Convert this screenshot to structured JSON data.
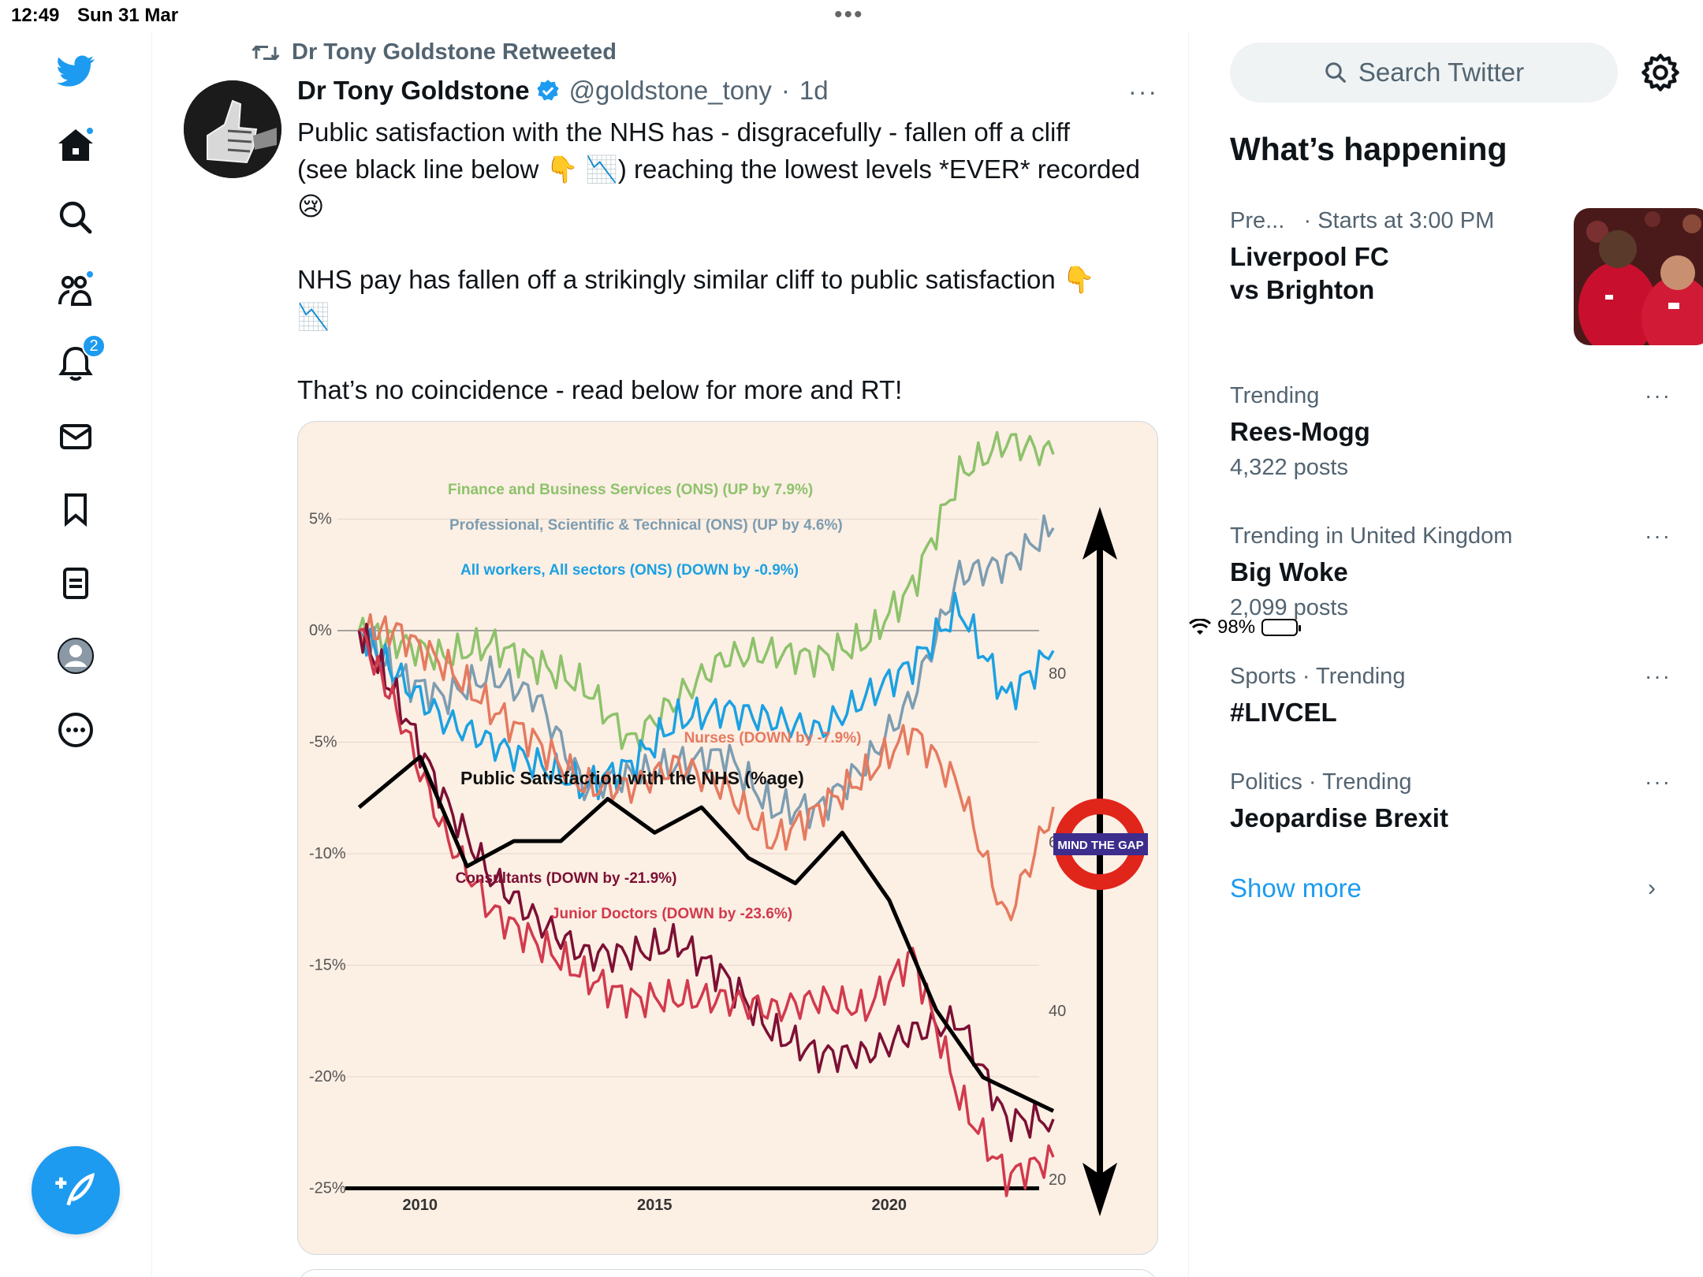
{
  "status_bar": {
    "time": "12:49",
    "date": "Sun 31 Mar",
    "battery": "98%",
    "battery_level": 0.98
  },
  "nav": {
    "icons": [
      "twitter-logo-icon",
      "home-icon",
      "search-icon",
      "communities-icon",
      "notifications-icon",
      "messages-icon",
      "bookmarks-icon",
      "lists-icon",
      "profile-icon",
      "more-icon"
    ],
    "notifications_badge": "2",
    "compose_icon": "feather-plus-icon"
  },
  "tweet": {
    "retweeted_by": "Dr Tony Goldstone Retweeted",
    "author_name": "Dr Tony Goldstone",
    "handle": "@goldstone_tony",
    "separator": "·",
    "time": "1d",
    "more": "···",
    "lines": {
      "l1": "Public satisfaction with the NHS has - disgracefully - fallen off a cliff",
      "l2": "(see black line below 👇 📉) reaching the lowest levels *EVER* recorded",
      "l3": "😢",
      "l4": "NHS pay has fallen off a strikingly similar  cliff to public satisfaction 👇",
      "l5": "📉",
      "l6": "That’s no coincidence - read below for more and RT!"
    }
  },
  "chart_data": {
    "type": "line",
    "title": "",
    "x": [
      2008.7,
      2009.5,
      2010.5,
      2011.5,
      2012.5,
      2013.5,
      2014.5,
      2015.5,
      2016.5,
      2017.5,
      2018.5,
      2019.5,
      2020.5,
      2021.5,
      2022.5,
      2023.5
    ],
    "xticks": [
      "2010",
      "2015",
      "2020"
    ],
    "left_axis": {
      "ticks": [
        "5%",
        "0%",
        "-5%",
        "-10%",
        "-15%",
        "-20%",
        "-25%"
      ],
      "range": [
        -25,
        10
      ]
    },
    "right_axis": {
      "ticks": [
        "80",
        "60",
        "40",
        "20"
      ],
      "range": [
        20,
        80
      ]
    },
    "series": [
      {
        "name": "Finance and Business Services (ONS) (UP by 7.9%)",
        "color": "#8dc26b",
        "axis": "left",
        "values": [
          0,
          -0.5,
          -1.2,
          -0.6,
          -1.5,
          -2.5,
          -5,
          -3,
          -1.2,
          -1,
          -1.2,
          -0.5,
          2,
          7,
          8.5,
          7.9
        ]
      },
      {
        "name": "Professional, Scientific & Technical (ONS) (UP by 4.6%)",
        "color": "#7d9db1",
        "axis": "left",
        "values": [
          0,
          -2,
          -3,
          -2,
          -3,
          -7,
          -6.5,
          -6,
          -5.5,
          -8,
          -8,
          -6,
          -3,
          2.5,
          3,
          4.6
        ]
      },
      {
        "name": "All workers, All sectors (ONS) (DOWN by -0.9%)",
        "color": "#1ba1e2",
        "axis": "left",
        "values": [
          0,
          -2,
          -4,
          -5,
          -6,
          -7,
          -6,
          -4,
          -3.5,
          -4,
          -4.5,
          -3,
          -1.5,
          1,
          -3,
          -0.9
        ]
      },
      {
        "name": "Nurses (DOWN by -7.9%)",
        "color": "#e57a5f",
        "axis": "left",
        "values": [
          0,
          0,
          -1.5,
          -3.5,
          -5,
          -7,
          -7,
          -6,
          -7,
          -9.5,
          -8,
          -6.5,
          -4.5,
          -7,
          -13,
          -7.9
        ]
      },
      {
        "name": "Consultants (DOWN by -21.9%)",
        "color": "#7c1034",
        "axis": "left",
        "values": [
          0,
          -3,
          -7.5,
          -11,
          -13,
          -14.5,
          -14.5,
          -14,
          -15.5,
          -18,
          -19,
          -19,
          -18,
          -17.5,
          -22,
          -21.9
        ]
      },
      {
        "name": "Junior Doctors (DOWN by -23.6%)",
        "color": "#d13a4d",
        "axis": "left",
        "values": [
          0,
          -3.5,
          -9,
          -12.5,
          -14,
          -15.5,
          -16.5,
          -16.5,
          -16.5,
          -17,
          -16.5,
          -17,
          -14.5,
          -21,
          -24.5,
          -23.6
        ]
      },
      {
        "name": "Public Satisfaction with the NHS (%age)",
        "color": "#000000",
        "axis": "right",
        "x": [
          2008.7,
          2010,
          2011,
          2012,
          2013,
          2014,
          2015,
          2016,
          2017,
          2018,
          2019,
          2020,
          2021,
          2022,
          2023.5
        ],
        "values": [
          64,
          70,
          57,
          60,
          60,
          65,
          61,
          64,
          58,
          55,
          61,
          53,
          40,
          32,
          28
        ]
      }
    ],
    "annotations": {
      "black_line_label": "Public Satisfaction with the NHS (%age)",
      "mind_the_gap": "MIND THE GAP"
    }
  },
  "sidebar": {
    "search_placeholder": "Search Twitter",
    "section_title": "What’s happening",
    "event": {
      "meta_left": "Pre...",
      "meta_right": "· Starts at 3:00 PM",
      "title_l1": "Liverpool FC",
      "title_l2": "vs Brighton"
    },
    "trends": [
      {
        "meta": "Trending",
        "title": "Rees-Mogg",
        "count": "4,322 posts"
      },
      {
        "meta": "Trending in United Kingdom",
        "title": "Big Woke",
        "count": "2,099 posts"
      },
      {
        "meta": "Sports · Trending",
        "title": "#LIVCEL",
        "count": ""
      },
      {
        "meta": "Politics · Trending",
        "title": "Jeopardise Brexit",
        "count": ""
      }
    ],
    "more_label": "···",
    "show_more": "Show more",
    "chevron": "›"
  }
}
